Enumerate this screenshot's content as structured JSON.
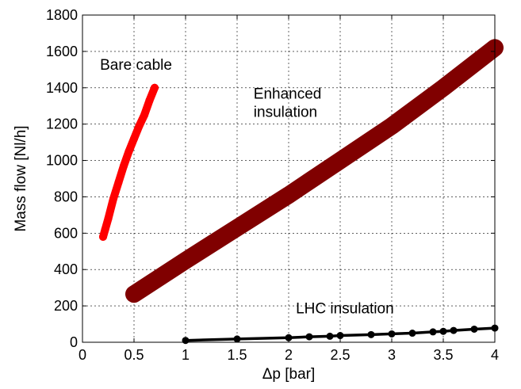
{
  "chart_data": {
    "type": "line",
    "xlabel": "Δp [bar]",
    "ylabel": "Mass flow [Nl/h]",
    "xlim": [
      0,
      4
    ],
    "ylim": [
      0,
      1800
    ],
    "xticks": [
      0,
      0.5,
      1,
      1.5,
      2,
      2.5,
      3,
      3.5,
      4
    ],
    "xtick_labels": [
      "0",
      "0.5",
      "1",
      "1.5",
      "2",
      "2.5",
      "3",
      "3.5",
      "4"
    ],
    "yticks": [
      0,
      200,
      400,
      600,
      800,
      1000,
      1200,
      1400,
      1600,
      1800
    ],
    "ytick_labels": [
      "0",
      "200",
      "400",
      "600",
      "800",
      "1000",
      "1200",
      "1400",
      "1600",
      "1800"
    ],
    "grid": true,
    "series": [
      {
        "name": "Bare cable",
        "color": "#ff0000",
        "x": [
          0.2,
          0.22,
          0.25,
          0.3,
          0.35,
          0.4,
          0.45,
          0.5,
          0.55,
          0.6,
          0.65,
          0.7
        ],
        "y": [
          580,
          620,
          680,
          790,
          880,
          970,
          1050,
          1120,
          1190,
          1250,
          1330,
          1400
        ]
      },
      {
        "name": "Enhanced insulation",
        "color": "#800000",
        "x": [
          0.5,
          1.0,
          1.5,
          2.0,
          2.5,
          3.0,
          3.5,
          4.0
        ],
        "y": [
          265,
          450,
          630,
          810,
          1000,
          1190,
          1400,
          1620
        ]
      },
      {
        "name": "LHC insulation",
        "color": "#000000",
        "x": [
          1.0,
          1.5,
          2.0,
          2.2,
          2.4,
          2.5,
          2.8,
          3.0,
          3.2,
          3.4,
          3.5,
          3.6,
          3.8,
          4.0
        ],
        "y": [
          10,
          18,
          25,
          30,
          33,
          37,
          42,
          46,
          50,
          57,
          60,
          65,
          72,
          78
        ]
      }
    ],
    "annotations": [
      {
        "text": "Bare cable",
        "x": 0.17,
        "y": 1500
      },
      {
        "text": "Enhanced",
        "x": 1.66,
        "y": 1340
      },
      {
        "text": "insulation",
        "x": 1.66,
        "y": 1240
      },
      {
        "text": "LHC insulation",
        "x": 2.07,
        "y": 160
      }
    ]
  }
}
